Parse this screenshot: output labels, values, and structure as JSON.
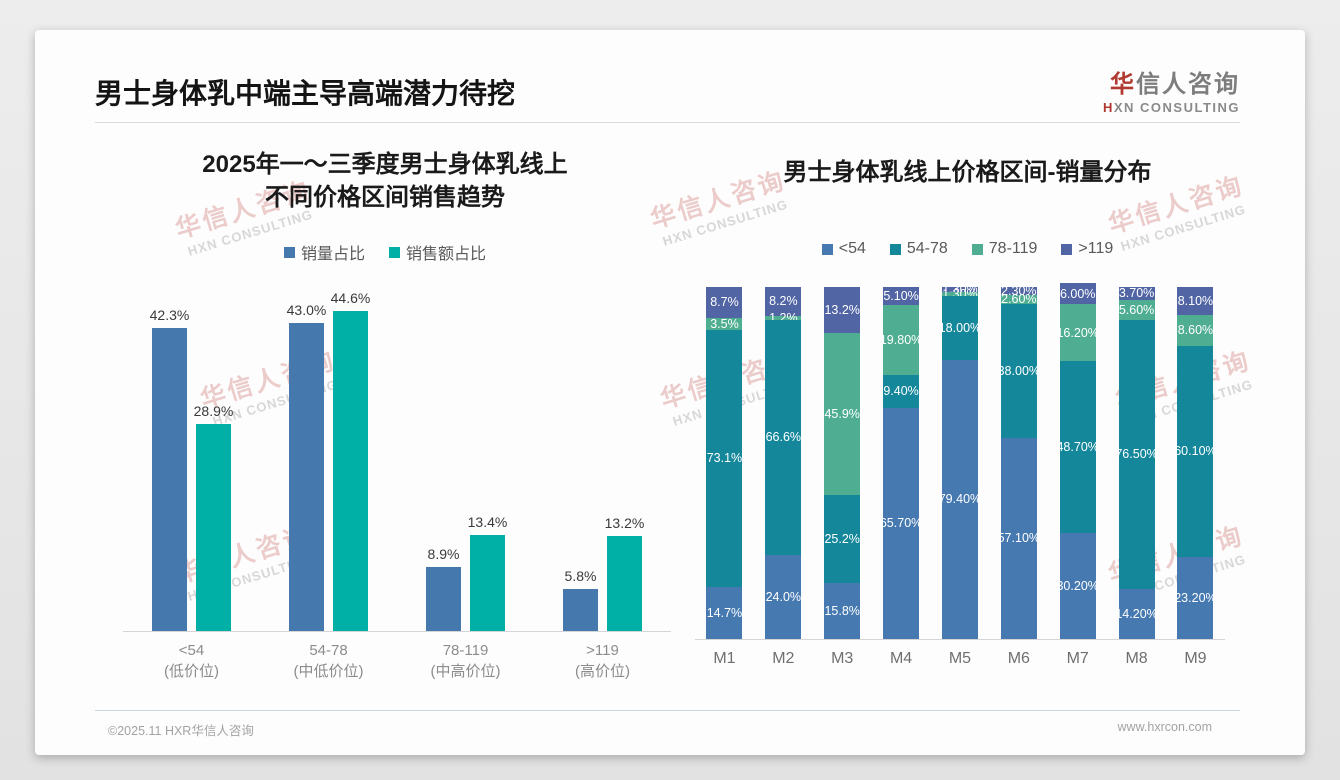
{
  "page": {
    "title": "男士身体乳中端主导高端潜力待挖",
    "logo": {
      "cn_accent": "华",
      "cn_rest": "信人咨询",
      "en_accent": "H",
      "en_rest": "XN CONSULTING"
    },
    "watermark": {
      "cn": "华信人咨询",
      "en": "HXN CONSULTING"
    },
    "footer": {
      "left": "©2025.11 HXR华信人咨询",
      "right": "www.hxrcon.com"
    }
  },
  "colors": {
    "left_volume_blue": "#4579ad",
    "left_revenue_teal": "#00b0a6",
    "stack_lt54_blue": "#4779b1",
    "stack_54_78_teal": "#15879b",
    "stack_78_119_green": "#4fae92",
    "stack_gt119_indigo": "#5165a4",
    "logo_red": "#b03a31"
  },
  "chart_data": [
    {
      "type": "bar",
      "stacked": false,
      "title_lines": [
        "2025年一～三季度男士身体乳线上",
        "不同价格区间销售趋势"
      ],
      "categories": [
        "<54",
        "54-78",
        "78-119",
        ">119"
      ],
      "category_sublabels": [
        "(低价位)",
        "(中低价位)",
        "(中高价位)",
        "(高价位)"
      ],
      "unit": "percent",
      "ylim": [
        0,
        47
      ],
      "grid": false,
      "legend_position": "top",
      "series": [
        {
          "name": "销量占比",
          "color": "#4579ad",
          "values": [
            42.3,
            43.0,
            8.9,
            5.8
          ],
          "labels": [
            "42.3%",
            "43.0%",
            "8.9%",
            "5.8%"
          ]
        },
        {
          "name": "销售额占比",
          "color": "#00b0a6",
          "values": [
            28.9,
            44.6,
            13.4,
            13.2
          ],
          "labels": [
            "28.9%",
            "44.6%",
            "13.4%",
            "13.2%"
          ]
        }
      ]
    },
    {
      "type": "bar",
      "stacked": true,
      "title": "男士身体乳线上价格区间-销量分布",
      "categories": [
        "M1",
        "M2",
        "M3",
        "M4",
        "M5",
        "M6",
        "M7",
        "M8",
        "M9"
      ],
      "unit": "percent",
      "ylim": [
        0,
        100
      ],
      "grid": false,
      "legend_position": "top",
      "series": [
        {
          "name": "<54",
          "color": "#4779b1",
          "values": [
            14.7,
            24.0,
            15.8,
            65.7,
            79.4,
            57.1,
            30.2,
            14.2,
            23.2
          ],
          "labels": [
            "14.7%",
            "24.0%",
            "15.8%",
            "65.70%",
            "79.40%",
            "57.10%",
            "30.20%",
            "14.20%",
            "23.20%"
          ]
        },
        {
          "name": "54-78",
          "color": "#15879b",
          "values": [
            73.1,
            66.6,
            25.2,
            9.4,
            18.0,
            38.0,
            48.7,
            76.5,
            60.1
          ],
          "labels": [
            "73.1%",
            "66.6%",
            "25.2%",
            "9.40%",
            "18.00%",
            "38.00%",
            "48.70%",
            "76.50%",
            "60.10%"
          ]
        },
        {
          "name": "78-119",
          "color": "#4fae92",
          "values": [
            3.5,
            1.2,
            45.9,
            19.8,
            1.3,
            2.6,
            16.2,
            5.6,
            8.6
          ],
          "labels": [
            "3.5%",
            "1.2%",
            "45.9%",
            "19.80%",
            "1.30%",
            "2.60%",
            "16.20%",
            "5.60%",
            "8.60%"
          ]
        },
        {
          "name": ">119",
          "color": "#5165a4",
          "values": [
            8.7,
            8.2,
            13.2,
            5.1,
            1.3,
            2.3,
            6.0,
            3.7,
            8.1
          ],
          "labels": [
            "8.7%",
            "8.2%",
            "13.2%",
            "5.10%",
            "1.30%",
            "2.30%",
            "6.00%",
            "3.70%",
            "8.10%"
          ]
        }
      ]
    }
  ]
}
